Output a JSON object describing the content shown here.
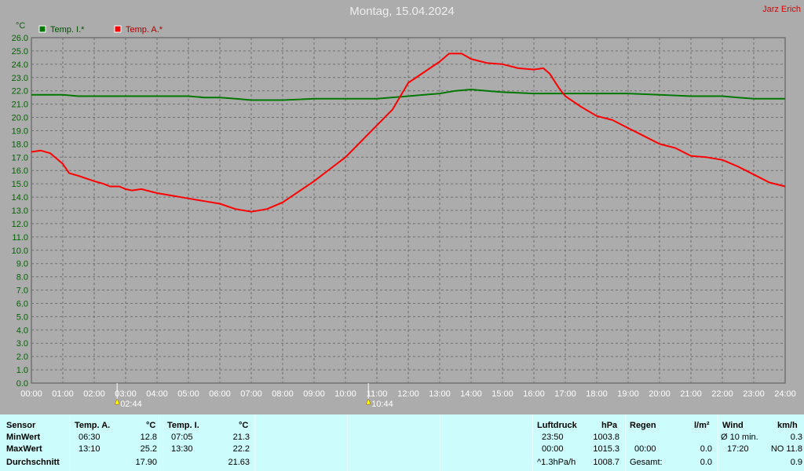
{
  "header": {
    "title": "Montag, 15.04.2024",
    "author": "Jarz Erich"
  },
  "chart_data": {
    "type": "line",
    "ylabel": "°C",
    "ylim": [
      0,
      26
    ],
    "yticks": [
      "0.0",
      "1.0",
      "2.0",
      "3.0",
      "4.0",
      "5.0",
      "6.0",
      "7.0",
      "8.0",
      "9.0",
      "10.0",
      "11.0",
      "12.0",
      "13.0",
      "14.0",
      "15.0",
      "16.0",
      "17.0",
      "18.0",
      "19.0",
      "20.0",
      "21.0",
      "22.0",
      "23.0",
      "24.0",
      "25.0",
      "26.0"
    ],
    "xticks": [
      "00:00",
      "01:00",
      "02:00",
      "03:00",
      "04:00",
      "05:00",
      "06:00",
      "07:00",
      "08:00",
      "09:00",
      "10:00",
      "11:00",
      "12:00",
      "13:00",
      "14:00",
      "15:00",
      "16:00",
      "17:00",
      "18:00",
      "19:00",
      "20:00",
      "21:00",
      "22:00",
      "23:00",
      "24:00"
    ],
    "xlim": [
      0,
      24
    ],
    "grid": true,
    "legend_position": "top-left",
    "markers": [
      {
        "x": 2.73,
        "label": "02:44"
      },
      {
        "x": 10.73,
        "label": "10:44"
      }
    ],
    "series": [
      {
        "name": "Temp. I.*",
        "color": "#007800",
        "x": [
          0,
          1,
          1.5,
          2,
          3,
          4,
          5,
          5.5,
          6,
          6.5,
          7,
          8,
          9,
          10,
          11,
          12,
          12.5,
          13,
          13.5,
          14,
          14.5,
          15,
          16,
          17,
          18,
          19,
          20,
          21,
          22,
          22.5,
          23,
          24
        ],
        "y": [
          21.7,
          21.7,
          21.6,
          21.6,
          21.6,
          21.6,
          21.6,
          21.5,
          21.5,
          21.4,
          21.3,
          21.3,
          21.4,
          21.4,
          21.4,
          21.6,
          21.7,
          21.8,
          22.0,
          22.1,
          22.0,
          21.9,
          21.8,
          21.8,
          21.8,
          21.8,
          21.7,
          21.6,
          21.6,
          21.5,
          21.4,
          21.4
        ]
      },
      {
        "name": "Temp. A.*",
        "color": "#ff0000",
        "x": [
          0,
          0.3,
          0.6,
          1,
          1.2,
          1.5,
          2,
          2.3,
          2.5,
          2.8,
          3,
          3.2,
          3.5,
          4,
          4.5,
          5,
          5.5,
          6,
          6.5,
          7,
          7.5,
          8,
          8.5,
          9,
          9.5,
          10,
          10.5,
          11,
          11.5,
          12,
          12.5,
          13,
          13.3,
          13.7,
          14,
          14.5,
          15,
          15.5,
          16,
          16.3,
          16.5,
          16.8,
          17,
          17.5,
          18,
          18.5,
          19,
          19.5,
          20,
          20.5,
          21,
          21.5,
          22,
          22.5,
          23,
          23.5,
          24
        ],
        "y": [
          17.4,
          17.5,
          17.3,
          16.5,
          15.8,
          15.6,
          15.2,
          15.0,
          14.8,
          14.8,
          14.6,
          14.5,
          14.6,
          14.3,
          14.1,
          13.9,
          13.7,
          13.5,
          13.1,
          12.9,
          13.1,
          13.6,
          14.4,
          15.2,
          16.1,
          17.0,
          18.2,
          19.4,
          20.6,
          22.6,
          23.4,
          24.2,
          24.8,
          24.8,
          24.4,
          24.1,
          24.0,
          23.7,
          23.6,
          23.7,
          23.3,
          22.2,
          21.6,
          20.8,
          20.1,
          19.8,
          19.2,
          18.6,
          18.0,
          17.7,
          17.1,
          17.0,
          16.8,
          16.3,
          15.7,
          15.1,
          14.8
        ]
      }
    ]
  },
  "table": {
    "sensor": {
      "header": "Sensor",
      "rows": [
        "MinWert",
        "MaxWert",
        "Durchschnitt"
      ]
    },
    "temp_a": {
      "header": "Temp. A.",
      "unit": "°C",
      "rows": [
        [
          "06:30",
          "12.8"
        ],
        [
          "13:10",
          "25.2"
        ],
        [
          "",
          "17.90"
        ]
      ]
    },
    "temp_i": {
      "header": "Temp. I.",
      "unit": "°C",
      "rows": [
        [
          "07:05",
          "21.3"
        ],
        [
          "13:30",
          "22.2"
        ],
        [
          "",
          "21.63"
        ]
      ]
    },
    "pressure": {
      "header": "Luftdruck",
      "unit": "hPa",
      "rows": [
        [
          "23:50",
          "1003.8"
        ],
        [
          "00:00",
          "1015.3"
        ],
        [
          "^1.3hPa/h",
          "1008.7"
        ]
      ]
    },
    "rain": {
      "header": "Regen",
      "unit": "l/m²",
      "rows": [
        [
          "",
          ""
        ],
        [
          "00:00",
          "0.0"
        ],
        [
          "Gesamt:",
          "0.0"
        ]
      ],
      "first_value": "0.0"
    },
    "wind": {
      "header": "Wind",
      "unit": "km/h",
      "rows": [
        [
          "Ø 10 min.",
          "0.3"
        ],
        [
          "17:20",
          "NO 11.8"
        ],
        [
          "",
          "0.9"
        ]
      ]
    }
  }
}
